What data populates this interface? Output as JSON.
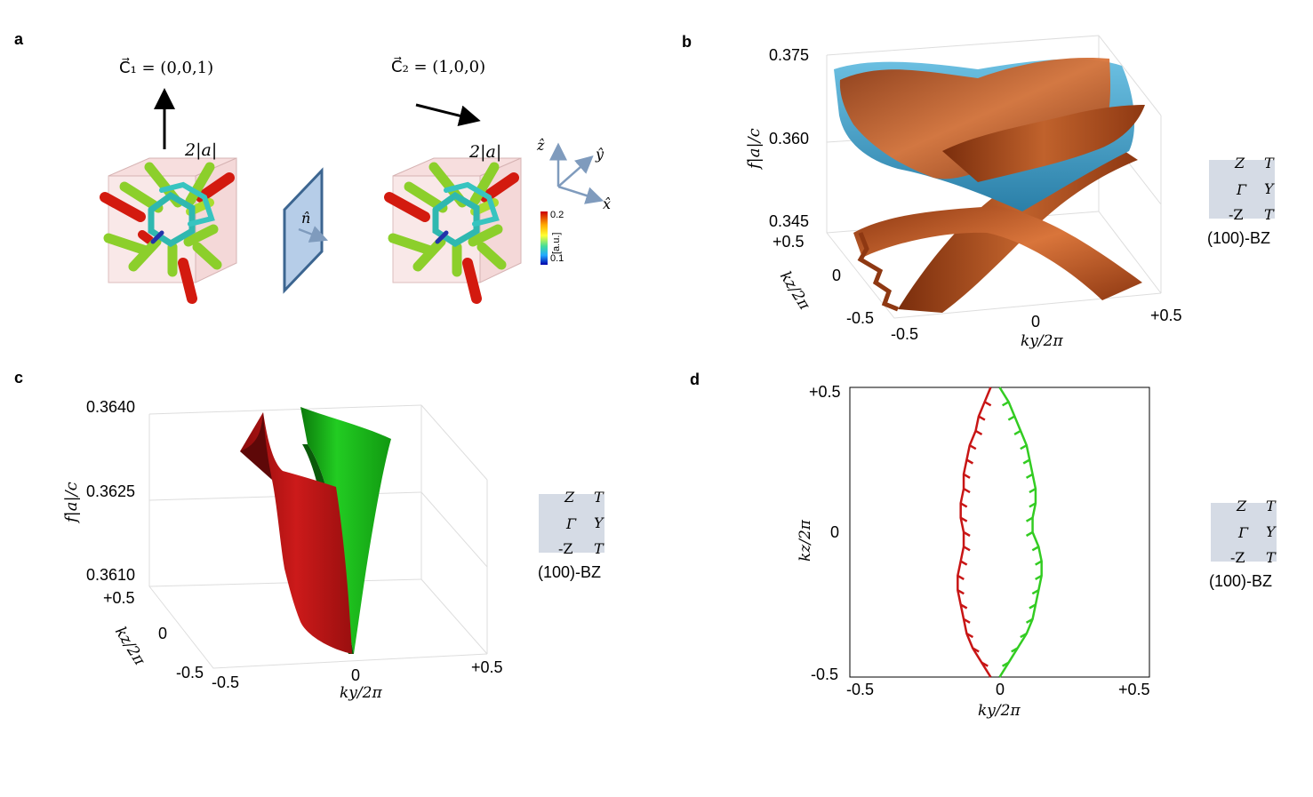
{
  "panels": {
    "a": {
      "label": "a",
      "c1": "C⃗₁ = (0,0,1)",
      "c2": "C⃗₂ = (1,0,0)",
      "lattice_left": "2|a|",
      "lattice_right": "2|a|",
      "normal": "n̂",
      "axes": {
        "z": "ẑ",
        "y": "ŷ",
        "x": "x̂"
      },
      "colorbar": {
        "max": "0.2",
        "min": "0.1",
        "unit": "[a.u.]"
      }
    },
    "b": {
      "label": "b",
      "z_ticks": [
        "0.375",
        "0.360",
        "0.345"
      ],
      "zlabel": "f|a|/c",
      "kz_ticks": [
        "+0.5",
        "0",
        "-0.5"
      ],
      "kz_label": "kz/2π",
      "ky_ticks": [
        "-0.5",
        "0",
        "+0.5"
      ],
      "ky_label": "ky/2π"
    },
    "c": {
      "label": "c",
      "z_ticks": [
        "0.3640",
        "0.3625",
        "0.3610"
      ],
      "zlabel": "f|a|/c",
      "kz_ticks": [
        "+0.5",
        "0",
        "-0.5"
      ],
      "kz_label": "kz/2π",
      "ky_ticks": [
        "-0.5",
        "0",
        "+0.5"
      ],
      "ky_label": "ky/2π"
    },
    "d": {
      "label": "d",
      "kz_ticks": [
        "+0.5",
        "0",
        "-0.5"
      ],
      "kz_label": "kz/2π",
      "ky_ticks": [
        "-0.5",
        "0",
        "+0.5"
      ],
      "ky_label": "ky/2π"
    }
  },
  "bz_inset": {
    "top": [
      "Z",
      "T"
    ],
    "mid": [
      "Γ",
      "Y"
    ],
    "bot": [
      "-Z",
      "T"
    ],
    "caption": "(100)-BZ"
  },
  "colors": {
    "surface_copper": "#b4521f",
    "surface_blue": "#4aa3c8",
    "red_mode": "#c81515",
    "green_mode": "#33cc22",
    "bz_fill": "#d5dbe5"
  },
  "chart_data": [
    {
      "panel": "d",
      "type": "line",
      "xlabel": "ky/2π",
      "ylabel": "kz/2π",
      "xlim": [
        -0.5,
        0.5
      ],
      "ylim": [
        -0.5,
        0.5
      ],
      "series": [
        {
          "color": "#c81515",
          "kz": [
            -0.5,
            -0.45,
            -0.4,
            -0.35,
            -0.3,
            -0.25,
            -0.2,
            -0.15,
            -0.1,
            -0.05,
            0.0,
            0.05,
            0.1,
            0.15,
            0.2,
            0.25,
            0.3,
            0.35,
            0.4,
            0.45,
            0.5
          ],
          "ky": [
            -0.03,
            -0.06,
            -0.09,
            -0.11,
            -0.12,
            -0.13,
            -0.14,
            -0.14,
            -0.13,
            -0.12,
            -0.12,
            -0.13,
            -0.13,
            -0.12,
            -0.12,
            -0.11,
            -0.1,
            -0.08,
            -0.07,
            -0.05,
            -0.03
          ]
        },
        {
          "color": "#33cc22",
          "kz": [
            -0.5,
            -0.45,
            -0.4,
            -0.35,
            -0.3,
            -0.25,
            -0.2,
            -0.15,
            -0.1,
            -0.05,
            0.0,
            0.05,
            0.1,
            0.15,
            0.2,
            0.25,
            0.3,
            0.35,
            0.4,
            0.45,
            0.5
          ],
          "ky": [
            0.0,
            0.03,
            0.06,
            0.09,
            0.11,
            0.12,
            0.13,
            0.14,
            0.14,
            0.13,
            0.11,
            0.11,
            0.12,
            0.12,
            0.11,
            0.1,
            0.09,
            0.07,
            0.05,
            0.03,
            0.0
          ]
        }
      ]
    }
  ]
}
